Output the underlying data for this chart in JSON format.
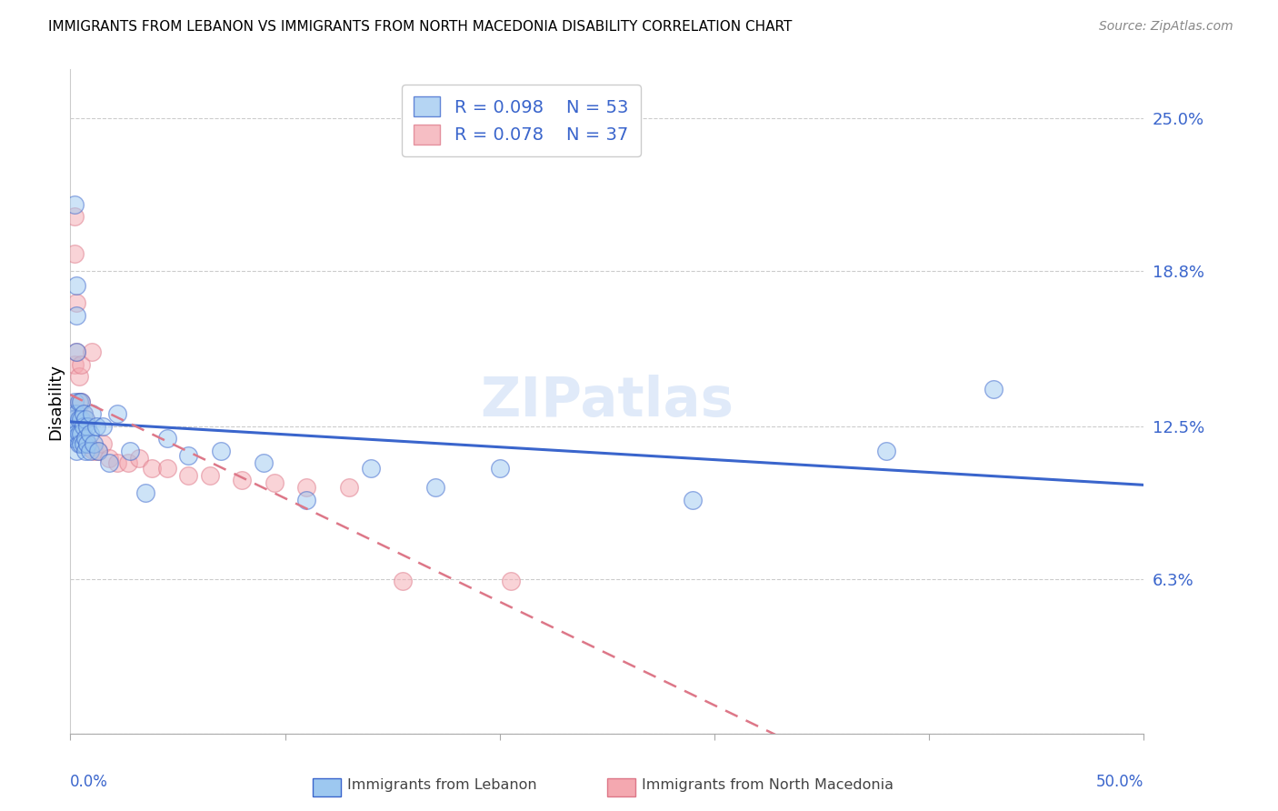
{
  "title": "IMMIGRANTS FROM LEBANON VS IMMIGRANTS FROM NORTH MACEDONIA DISABILITY CORRELATION CHART",
  "source": "Source: ZipAtlas.com",
  "ylabel": "Disability",
  "xlim": [
    0.0,
    0.5
  ],
  "ylim": [
    0.0,
    0.27
  ],
  "yticks": [
    0.0,
    0.063,
    0.125,
    0.188,
    0.25
  ],
  "ytick_labels": [
    "",
    "6.3%",
    "12.5%",
    "18.8%",
    "25.0%"
  ],
  "legend_r1": "R = 0.098",
  "legend_n1": "N = 53",
  "legend_r2": "R = 0.078",
  "legend_n2": "N = 37",
  "color_lebanon": "#9DC8F0",
  "color_macedonia": "#F4A8B0",
  "color_line_lebanon": "#3A65CC",
  "color_line_macedonia": "#DD7788",
  "watermark": "ZIPatlas",
  "lebanon_x": [
    0.001,
    0.001,
    0.001,
    0.001,
    0.002,
    0.002,
    0.002,
    0.002,
    0.002,
    0.003,
    0.003,
    0.003,
    0.003,
    0.003,
    0.003,
    0.004,
    0.004,
    0.004,
    0.004,
    0.005,
    0.005,
    0.005,
    0.005,
    0.006,
    0.006,
    0.006,
    0.007,
    0.007,
    0.007,
    0.008,
    0.008,
    0.009,
    0.009,
    0.01,
    0.011,
    0.012,
    0.013,
    0.015,
    0.018,
    0.022,
    0.028,
    0.035,
    0.045,
    0.055,
    0.07,
    0.09,
    0.11,
    0.14,
    0.17,
    0.2,
    0.29,
    0.38,
    0.43
  ],
  "lebanon_y": [
    0.13,
    0.125,
    0.122,
    0.12,
    0.215,
    0.135,
    0.128,
    0.124,
    0.12,
    0.182,
    0.17,
    0.155,
    0.13,
    0.122,
    0.115,
    0.135,
    0.128,
    0.122,
    0.118,
    0.135,
    0.128,
    0.122,
    0.118,
    0.13,
    0.125,
    0.118,
    0.128,
    0.12,
    0.115,
    0.125,
    0.118,
    0.122,
    0.115,
    0.13,
    0.118,
    0.125,
    0.115,
    0.125,
    0.11,
    0.13,
    0.115,
    0.098,
    0.12,
    0.113,
    0.115,
    0.11,
    0.095,
    0.108,
    0.1,
    0.108,
    0.095,
    0.115,
    0.14
  ],
  "macedonia_x": [
    0.001,
    0.001,
    0.002,
    0.002,
    0.002,
    0.003,
    0.003,
    0.003,
    0.004,
    0.004,
    0.004,
    0.005,
    0.005,
    0.005,
    0.006,
    0.006,
    0.007,
    0.008,
    0.009,
    0.01,
    0.011,
    0.013,
    0.015,
    0.018,
    0.022,
    0.027,
    0.032,
    0.038,
    0.045,
    0.055,
    0.065,
    0.08,
    0.095,
    0.11,
    0.13,
    0.155,
    0.205
  ],
  "macedonia_y": [
    0.13,
    0.12,
    0.21,
    0.195,
    0.15,
    0.175,
    0.155,
    0.13,
    0.145,
    0.135,
    0.125,
    0.15,
    0.135,
    0.122,
    0.13,
    0.118,
    0.128,
    0.118,
    0.116,
    0.155,
    0.115,
    0.115,
    0.118,
    0.112,
    0.11,
    0.11,
    0.112,
    0.108,
    0.108,
    0.105,
    0.105,
    0.103,
    0.102,
    0.1,
    0.1,
    0.062,
    0.062
  ]
}
